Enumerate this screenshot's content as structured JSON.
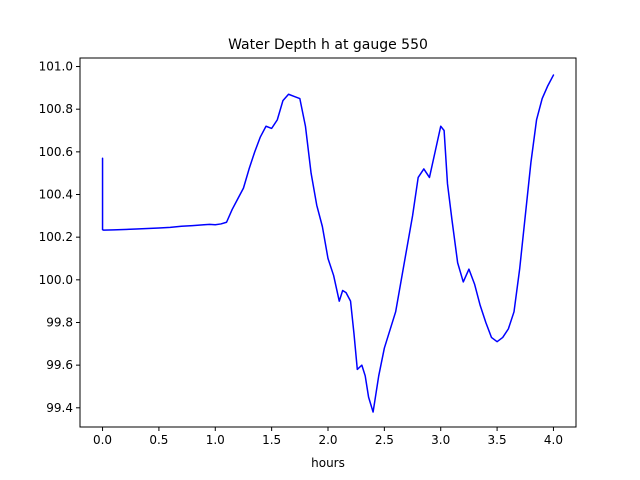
{
  "chart_data": {
    "type": "line",
    "title": "Water Depth h at gauge 550",
    "xlabel": "hours",
    "ylabel": "",
    "xlim": [
      -0.2,
      4.2
    ],
    "ylim": [
      99.31,
      101.04
    ],
    "grid": false,
    "legend": "none",
    "x_ticks": [
      0.0,
      0.5,
      1.0,
      1.5,
      2.0,
      2.5,
      3.0,
      3.5,
      4.0
    ],
    "x_tick_labels": [
      "0.0",
      "0.5",
      "1.0",
      "1.5",
      "2.0",
      "2.5",
      "3.0",
      "3.5",
      "4.0"
    ],
    "y_ticks": [
      99.4,
      99.6,
      99.8,
      100.0,
      100.2,
      100.4,
      100.6,
      100.8,
      101.0
    ],
    "y_tick_labels": [
      "99.4",
      "99.6",
      "99.8",
      "100.0",
      "100.2",
      "100.4",
      "100.6",
      "100.8",
      "101.0"
    ],
    "line_color": "#0000ff",
    "series": [
      {
        "x": [
          0.0,
          0.0,
          0.01,
          0.1,
          0.3,
          0.5,
          0.6,
          0.7,
          0.8,
          0.9,
          0.95,
          1.0,
          1.05,
          1.1,
          1.15,
          1.2,
          1.25,
          1.3,
          1.35,
          1.4,
          1.45,
          1.5,
          1.55,
          1.6,
          1.65,
          1.7,
          1.75,
          1.8,
          1.85,
          1.9,
          1.95,
          2.0,
          2.05,
          2.1,
          2.13,
          2.16,
          2.2,
          2.23,
          2.26,
          2.3,
          2.33,
          2.36,
          2.4,
          2.45,
          2.5,
          2.6,
          2.7,
          2.75,
          2.8,
          2.85,
          2.9,
          2.95,
          3.0,
          3.03,
          3.06,
          3.1,
          3.15,
          3.2,
          3.25,
          3.3,
          3.35,
          3.4,
          3.45,
          3.5,
          3.55,
          3.6,
          3.65,
          3.7,
          3.75,
          3.8,
          3.85,
          3.9,
          3.95,
          4.0
        ],
        "y": [
          100.57,
          100.235,
          100.233,
          100.234,
          100.238,
          100.243,
          100.246,
          100.251,
          100.254,
          100.258,
          100.26,
          100.258,
          100.262,
          100.27,
          100.33,
          100.38,
          100.43,
          100.52,
          100.6,
          100.67,
          100.72,
          100.71,
          100.75,
          100.84,
          100.87,
          100.86,
          100.85,
          100.72,
          100.5,
          100.35,
          100.25,
          100.1,
          100.02,
          99.9,
          99.95,
          99.94,
          99.9,
          99.75,
          99.58,
          99.6,
          99.55,
          99.45,
          99.38,
          99.55,
          99.68,
          99.85,
          100.15,
          100.3,
          100.48,
          100.52,
          100.48,
          100.6,
          100.72,
          100.7,
          100.45,
          100.28,
          100.08,
          99.99,
          100.05,
          99.98,
          99.88,
          99.8,
          99.73,
          99.71,
          99.73,
          99.77,
          99.85,
          100.05,
          100.3,
          100.55,
          100.75,
          100.85,
          100.91,
          100.96
        ]
      }
    ]
  }
}
